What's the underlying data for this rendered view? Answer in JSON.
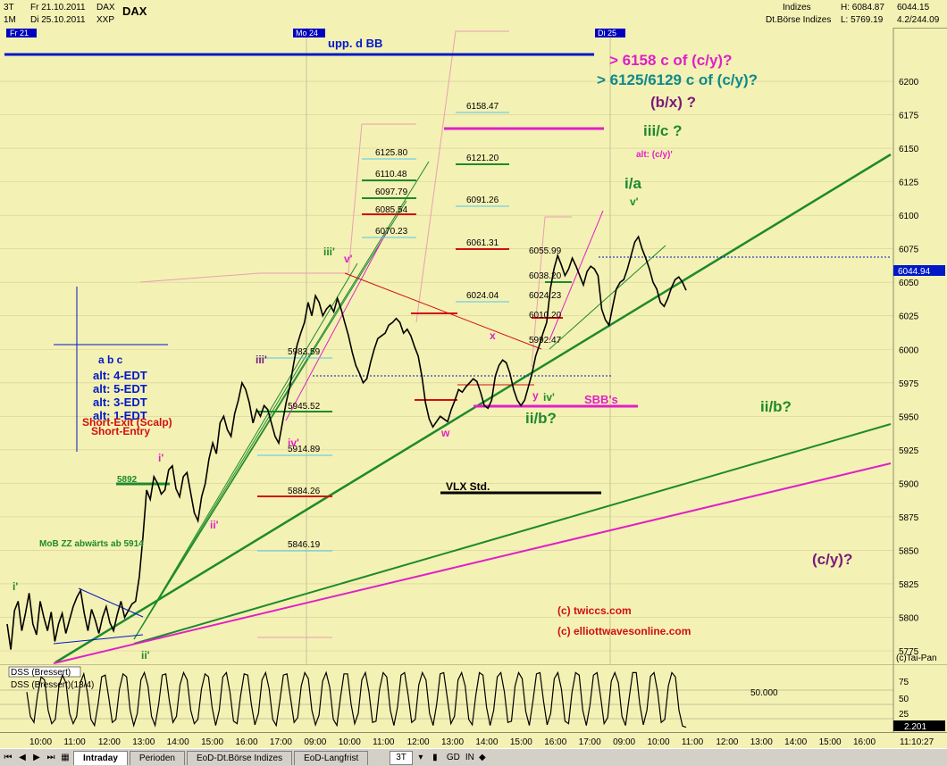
{
  "header": {
    "timeframe1": "3T",
    "from_date": "Fr 21.10.2011",
    "code1": "DAX",
    "timeframe2": "1M",
    "to_date": "Di 25.10.2011",
    "code2": "XXP",
    "symbol": "DAX",
    "right_group": "Indizes",
    "right_exchange": "Dt.Börse Indizes",
    "high": "H: 6084.87",
    "low": "L: 5769.19",
    "last": "6044.15",
    "change": "4.2/244.09"
  },
  "day_markers": [
    "Fr 21",
    "Mo 24",
    "Di 25"
  ],
  "chart_data": {
    "type": "line",
    "ylim": [
      5765,
      6240
    ],
    "y_ticks": [
      5775,
      5800,
      5825,
      5850,
      5875,
      5900,
      5925,
      5950,
      5975,
      6000,
      6025,
      6050,
      6075,
      6100,
      6125,
      6150,
      6175,
      6200
    ],
    "x_tick_labels": [
      "10:00",
      "11:00",
      "12:00",
      "13:00",
      "14:00",
      "15:00",
      "16:00",
      "17:00",
      "09:00",
      "10:00",
      "11:00",
      "12:00",
      "13:00",
      "14:00",
      "15:00",
      "16:00",
      "17:00",
      "09:00",
      "10:00",
      "11:00",
      "12:00",
      "13:00",
      "14:00",
      "15:00",
      "16:00"
    ],
    "x_axis_end_label": "11:10:27",
    "last_price_label": "6044.94",
    "series": [
      {
        "values": [
          5795,
          5776,
          5805,
          5812,
          5790,
          5803,
          5818,
          5795,
          5787,
          5812,
          5800,
          5790,
          5804,
          5782,
          5795,
          5803,
          5788,
          5798,
          5808,
          5815,
          5820,
          5803,
          5790,
          5806,
          5798,
          5788,
          5800,
          5808,
          5796,
          5790,
          5802,
          5812,
          5800,
          5805,
          5810,
          5812,
          5830,
          5860,
          5895,
          5888,
          5905,
          5900,
          5892,
          5895,
          5910,
          5913,
          5896,
          5890,
          5905,
          5908,
          5893,
          5878,
          5872,
          5890,
          5900,
          5918,
          5930,
          5922,
          5945,
          5950,
          5940,
          5935,
          5952,
          5962,
          5975,
          5970,
          5960,
          5945,
          5955,
          5950,
          5958,
          5955,
          5945,
          5935,
          5930,
          5945,
          5960,
          5972,
          5988,
          6003,
          6012,
          6020,
          6035,
          6025,
          6040,
          6035,
          6025,
          6030,
          6033,
          6028,
          6038,
          6030,
          6020,
          6010,
          5998,
          5988,
          5982,
          5975,
          5978,
          5990,
          6000,
          6008,
          6010,
          6012,
          6018,
          6020,
          6023,
          6020,
          6012,
          6015,
          6010,
          6002,
          5995,
          5980,
          5960,
          5948,
          5942,
          5946,
          5950,
          5948,
          5946,
          5955,
          5962,
          5970,
          5968,
          5972,
          5975,
          5978,
          5976,
          5968,
          5958,
          5956,
          5962,
          5980,
          5988,
          5992,
          5990,
          5982,
          5970,
          5962,
          5958,
          5962,
          5972,
          5982,
          5995,
          6003,
          6012,
          6020,
          6045,
          6060,
          6070,
          6063,
          6055,
          6060,
          6068,
          6062,
          6055,
          6048,
          6058,
          6062,
          6060,
          6055,
          6030,
          6022,
          6018,
          6032,
          6045,
          6050,
          6052,
          6060,
          6070,
          6080,
          6084,
          6075,
          6068,
          6060,
          6050,
          6045,
          6035,
          6032,
          6038,
          6046,
          6052,
          6054,
          6050,
          6044
        ]
      }
    ]
  },
  "oscillator": {
    "title": "DSS (Bressert)",
    "subtitle": "DSS (Bressert)(13/4)",
    "y_ticks": [
      75,
      50,
      25
    ],
    "level_label": "50.000",
    "last_value": "2.201",
    "values": [
      60,
      20,
      10,
      55,
      85,
      80,
      30,
      8,
      15,
      70,
      88,
      75,
      25,
      8,
      20,
      75,
      90,
      60,
      15,
      5,
      40,
      85,
      88,
      50,
      10,
      15,
      65,
      90,
      85,
      30,
      5,
      25,
      80,
      92,
      70,
      20,
      5,
      40,
      88,
      90,
      45,
      10,
      20,
      72,
      92,
      80,
      30,
      8,
      15,
      65,
      90,
      85,
      35,
      5,
      30,
      85,
      92,
      60,
      12,
      8,
      55,
      90,
      88,
      40,
      6,
      25,
      80,
      92,
      65,
      15,
      5,
      45,
      88,
      90,
      50,
      10,
      18,
      70,
      92,
      82,
      30,
      6,
      22,
      78,
      92,
      68,
      15,
      5,
      50,
      90,
      90,
      40,
      8,
      25,
      80,
      92,
      60,
      10,
      12,
      65,
      92,
      85,
      30,
      5,
      35,
      88,
      92,
      55,
      10,
      15,
      72,
      92,
      80,
      25,
      5,
      40,
      90,
      92,
      50,
      8,
      20,
      80,
      92,
      70,
      15,
      6,
      55,
      92,
      88,
      35,
      5,
      30,
      85,
      92,
      60,
      10,
      12,
      70,
      92,
      82,
      28,
      5,
      45,
      90,
      92,
      45,
      6,
      25,
      82,
      92,
      65,
      12,
      8,
      60,
      92,
      88,
      30,
      5,
      38,
      88,
      92,
      52,
      8,
      18,
      78,
      92,
      75,
      20,
      5,
      50,
      92,
      92,
      40,
      6,
      30,
      86,
      92,
      60,
      10,
      15,
      70,
      92,
      85,
      30,
      4,
      2
    ]
  },
  "annotations": {
    "upp_bb": "upp. d BB",
    "target1": "> 6158 c of (c/y)?",
    "target2": "> 6125/6129 c of (c/y)?",
    "bx": "(b/x) ?",
    "iiic": "iii/c ?",
    "alt_cy": "alt: (c/y)'",
    "ia": "i/a",
    "v_prime": "v'",
    "v_prime2": "v'",
    "iii_prime": "iii'",
    "iii_prime2": "iii'",
    "iv_prime": "iv'",
    "iv_prime2": "iv'",
    "i_prime": "i'",
    "i_prime2": "i'",
    "ii_prime": "ii'",
    "ii_prime2": "ii'",
    "x": "x",
    "y": "y",
    "w": "w",
    "iib": "ii/b?",
    "iib2": "ii/b?",
    "sbb": "SBB's",
    "vlx": "VLX Std.",
    "cy": "(c/y)?",
    "copy1": "(c) twiccs.com",
    "copy2": "(c) elliottwavesonline.com",
    "mob": "MoB ZZ abwärts ab 5914",
    "v5892": "5892",
    "abc": "a b c",
    "alt4": "alt: 4-EDT",
    "alt5": "alt: 5-EDT",
    "alt3": "alt: 3-EDT",
    "alt1": "alt: 1-EDT",
    "short_exit": "Short-Exit (Scalp)",
    "short_entry": "Short-Entry",
    "taipan": "(c)Tai-Pan",
    "fib_left": [
      "6125.80",
      "6110.48",
      "6097.79",
      "6085.54",
      "6070.23"
    ],
    "fib_mid": [
      "6158.47",
      "6121.20",
      "6091.26",
      "6061.31",
      "6024.04"
    ],
    "fib_right": [
      "6055.99",
      "6038.20",
      "6024.23",
      "6010.20",
      "5992.47"
    ],
    "fib_low": [
      "5983.59",
      "5945.52",
      "5914.89",
      "5884.26",
      "5846.19"
    ]
  },
  "tabs": [
    "Intraday",
    "Perioden",
    "EoD-Dt.Börse Indizes",
    "EoD-Langfrist"
  ],
  "toolbar": {
    "tf": "3T",
    "gd": "GD",
    "in": "IN"
  },
  "colors": {
    "background": "#f4f1b4",
    "price": "#000000",
    "green": "#1d8a2d",
    "magenta": "#e020c8",
    "blue": "#0018c8",
    "red": "#d01010",
    "purple": "#7a1a7a"
  }
}
